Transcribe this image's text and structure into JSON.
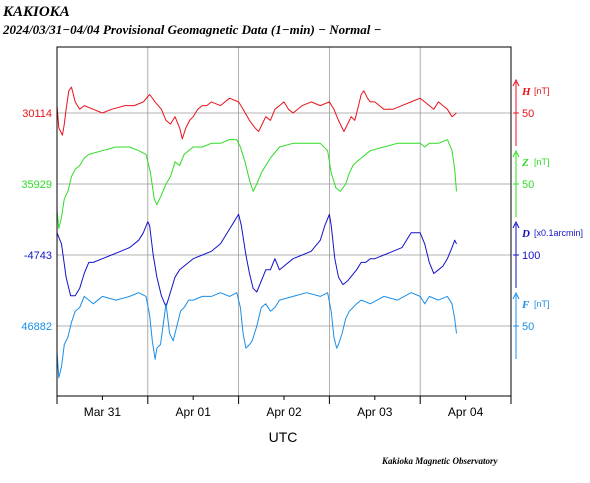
{
  "header": {
    "station": "KAKIOKA",
    "subtitle": "2024/03/31−04/04  Provisional Geomagnetic Data (1−min)  − Normal −"
  },
  "footer": {
    "credit": "Kakioka Magnetic Observatory"
  },
  "chart_data": {
    "type": "line",
    "title": "KAKIOKA",
    "subtitle": "2024/03/31−04/04  Provisional Geomagnetic Data (1−min)  − Normal −",
    "xlabel": "UTC",
    "x_range_days": [
      0,
      5
    ],
    "x_ticks": [
      {
        "day": 0.5,
        "label": "Mar 31"
      },
      {
        "day": 1.5,
        "label": "Apr 01"
      },
      {
        "day": 2.5,
        "label": "Apr 02"
      },
      {
        "day": 3.5,
        "label": "Apr 03"
      },
      {
        "day": 4.5,
        "label": "Apr 04"
      }
    ],
    "grid": true,
    "series": [
      {
        "name": "H",
        "color": "#e8121a",
        "baseline_label": "30114",
        "unit": "[nT]",
        "scale_label": "50",
        "x": [
          0,
          0.02,
          0.04,
          0.06,
          0.08,
          0.1,
          0.13,
          0.16,
          0.2,
          0.25,
          0.3,
          0.4,
          0.5,
          0.6,
          0.75,
          0.85,
          0.95,
          1.02,
          1.08,
          1.15,
          1.2,
          1.25,
          1.3,
          1.35,
          1.38,
          1.42,
          1.46,
          1.5,
          1.55,
          1.6,
          1.65,
          1.7,
          1.8,
          1.9,
          2.0,
          2.05,
          2.12,
          2.18,
          2.22,
          2.26,
          2.3,
          2.35,
          2.4,
          2.45,
          2.5,
          2.55,
          2.6,
          2.7,
          2.8,
          2.9,
          3.0,
          3.05,
          3.1,
          3.16,
          3.2,
          3.24,
          3.28,
          3.32,
          3.35,
          3.38,
          3.42,
          3.45,
          3.5,
          3.6,
          3.7,
          3.8,
          3.9,
          4.0,
          4.05,
          4.1,
          4.15,
          4.2,
          4.25,
          4.3,
          4.35,
          4.4
        ],
        "values": [
          10,
          -20,
          -25,
          -30,
          -15,
          5,
          30,
          35,
          15,
          5,
          10,
          5,
          0,
          5,
          10,
          10,
          15,
          25,
          15,
          5,
          -10,
          -15,
          -5,
          -20,
          -35,
          -20,
          -10,
          -5,
          5,
          10,
          10,
          15,
          10,
          20,
          15,
          5,
          -10,
          -20,
          -25,
          -15,
          -5,
          -10,
          5,
          10,
          15,
          5,
          0,
          10,
          15,
          10,
          15,
          5,
          -10,
          -25,
          -15,
          -5,
          -10,
          10,
          25,
          30,
          20,
          15,
          15,
          5,
          5,
          10,
          15,
          20,
          15,
          10,
          5,
          15,
          10,
          5,
          -5,
          0
        ]
      },
      {
        "name": "Z",
        "color": "#2fdc26",
        "baseline_label": "35929",
        "unit": "[nT]",
        "scale_label": "50",
        "x": [
          0,
          0.02,
          0.05,
          0.08,
          0.12,
          0.16,
          0.2,
          0.25,
          0.3,
          0.35,
          0.5,
          0.65,
          0.8,
          0.9,
          0.98,
          1.03,
          1.07,
          1.1,
          1.15,
          1.2,
          1.25,
          1.3,
          1.35,
          1.4,
          1.45,
          1.5,
          1.6,
          1.7,
          1.8,
          1.9,
          1.98,
          2.02,
          2.07,
          2.12,
          2.16,
          2.2,
          2.25,
          2.3,
          2.35,
          2.45,
          2.6,
          2.75,
          2.9,
          2.98,
          3.02,
          3.07,
          3.12,
          3.18,
          3.22,
          3.26,
          3.3,
          3.35,
          3.45,
          3.6,
          3.75,
          3.9,
          4.0,
          4.05,
          4.1,
          4.2,
          4.3,
          4.35,
          4.38,
          4.4
        ],
        "values": [
          -35,
          -60,
          -45,
          -20,
          -10,
          10,
          20,
          25,
          35,
          40,
          45,
          50,
          50,
          45,
          40,
          15,
          -20,
          -28,
          -15,
          0,
          10,
          30,
          25,
          40,
          45,
          50,
          50,
          55,
          55,
          60,
          60,
          50,
          30,
          5,
          -10,
          0,
          15,
          25,
          35,
          50,
          55,
          55,
          55,
          45,
          15,
          -5,
          -10,
          0,
          15,
          25,
          30,
          35,
          45,
          50,
          55,
          55,
          55,
          50,
          55,
          55,
          60,
          45,
          20,
          -10
        ]
      },
      {
        "name": "D",
        "color": "#1212c8",
        "baseline_label": "-4743",
        "unit": "[x0.1arcmin]",
        "scale_label": "100",
        "x": [
          0,
          0.05,
          0.1,
          0.15,
          0.2,
          0.25,
          0.3,
          0.35,
          0.4,
          0.5,
          0.6,
          0.7,
          0.8,
          0.9,
          0.95,
          1.0,
          1.02,
          1.06,
          1.1,
          1.15,
          1.2,
          1.25,
          1.3,
          1.35,
          1.4,
          1.45,
          1.5,
          1.6,
          1.7,
          1.8,
          1.9,
          1.95,
          2.0,
          2.03,
          2.08,
          2.12,
          2.16,
          2.2,
          2.25,
          2.3,
          2.35,
          2.4,
          2.45,
          2.5,
          2.6,
          2.7,
          2.8,
          2.9,
          2.95,
          3.0,
          3.02,
          3.06,
          3.1,
          3.15,
          3.2,
          3.3,
          3.35,
          3.4,
          3.45,
          3.5,
          3.6,
          3.7,
          3.8,
          3.9,
          4.0,
          4.05,
          4.1,
          4.15,
          4.2,
          4.25,
          4.3,
          4.35,
          4.38,
          4.4
        ],
        "values": [
          30,
          15,
          -30,
          -55,
          -55,
          -45,
          -25,
          -10,
          -10,
          -5,
          0,
          5,
          10,
          20,
          30,
          45,
          40,
          0,
          -30,
          -55,
          -70,
          -50,
          -30,
          -20,
          -15,
          -10,
          -5,
          0,
          5,
          15,
          35,
          45,
          55,
          40,
          0,
          -25,
          -45,
          -50,
          -35,
          -20,
          -20,
          -5,
          -20,
          -15,
          -5,
          0,
          5,
          20,
          40,
          55,
          40,
          -5,
          -30,
          -40,
          -35,
          -20,
          -10,
          -10,
          -5,
          -5,
          0,
          5,
          10,
          30,
          30,
          15,
          -10,
          -25,
          -20,
          -15,
          -5,
          10,
          20,
          15
        ]
      },
      {
        "name": "F",
        "color": "#1a8ee8",
        "baseline_label": "46882",
        "unit": "[nT]",
        "scale_label": "50",
        "x": [
          0,
          0.02,
          0.05,
          0.08,
          0.12,
          0.16,
          0.2,
          0.25,
          0.3,
          0.35,
          0.4,
          0.5,
          0.65,
          0.8,
          0.9,
          0.98,
          1.02,
          1.05,
          1.08,
          1.1,
          1.14,
          1.2,
          1.24,
          1.28,
          1.32,
          1.36,
          1.4,
          1.45,
          1.5,
          1.6,
          1.7,
          1.8,
          1.9,
          1.98,
          2.02,
          2.05,
          2.08,
          2.12,
          2.15,
          2.2,
          2.25,
          2.3,
          2.35,
          2.4,
          2.45,
          2.6,
          2.75,
          2.9,
          2.98,
          3.02,
          3.05,
          3.08,
          3.1,
          3.14,
          3.18,
          3.22,
          3.26,
          3.3,
          3.35,
          3.45,
          3.6,
          3.75,
          3.9,
          4.0,
          4.05,
          4.1,
          4.2,
          4.3,
          4.35,
          4.38,
          4.4
        ],
        "values": [
          -35,
          -70,
          -55,
          -25,
          -15,
          5,
          20,
          25,
          40,
          35,
          30,
          40,
          35,
          40,
          45,
          40,
          15,
          -20,
          -45,
          -30,
          -25,
          30,
          -10,
          -20,
          0,
          20,
          25,
          35,
          35,
          40,
          40,
          45,
          40,
          45,
          25,
          -10,
          -30,
          -25,
          -20,
          0,
          25,
          30,
          20,
          25,
          35,
          40,
          45,
          40,
          45,
          20,
          -15,
          -30,
          -25,
          -10,
          10,
          20,
          25,
          30,
          35,
          30,
          40,
          35,
          45,
          40,
          30,
          40,
          35,
          40,
          30,
          10,
          -10
        ]
      }
    ]
  }
}
